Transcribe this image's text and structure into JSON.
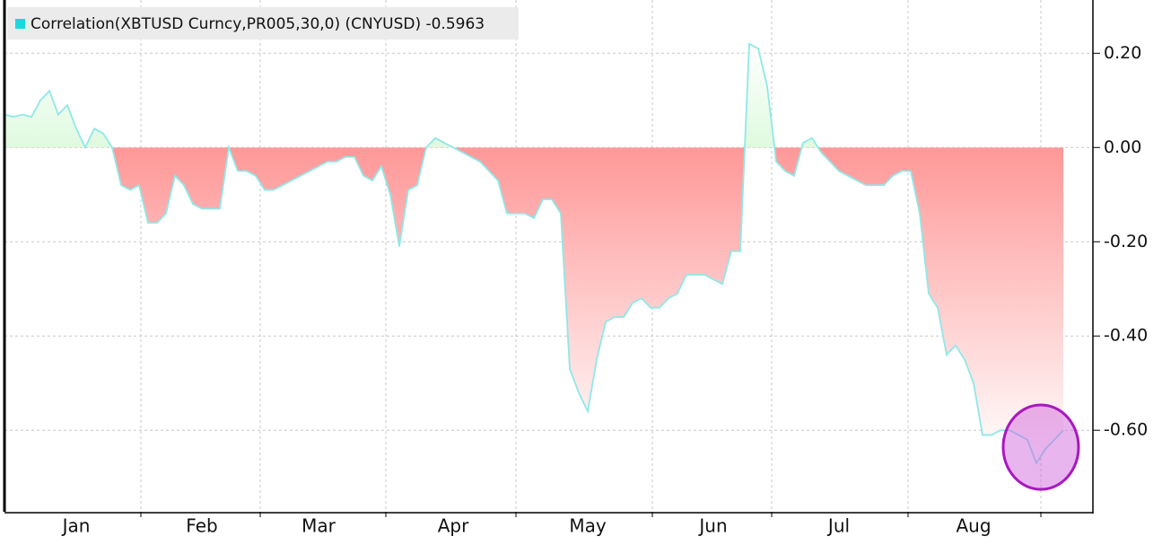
{
  "chart_data": {
    "type": "area",
    "categories": [
      null,
      null,
      null,
      null,
      null,
      null,
      null,
      null,
      "Jan",
      null,
      null,
      null,
      null,
      null,
      null,
      null,
      null,
      null,
      null,
      null,
      null,
      null,
      "Feb",
      null,
      null,
      null,
      null,
      null,
      null,
      null,
      null,
      null,
      null,
      null,
      null,
      "Mar",
      null,
      null,
      null,
      null,
      null,
      null,
      null,
      null,
      null,
      null,
      null,
      null,
      null,
      null,
      "Apr",
      null,
      null,
      null,
      null,
      null,
      null,
      null,
      null,
      null,
      null,
      null,
      null,
      null,
      null,
      "May",
      null,
      null,
      null,
      null,
      null,
      null,
      null,
      null,
      null,
      null,
      null,
      null,
      null,
      "Jun",
      null,
      null,
      null,
      null,
      null,
      null,
      null,
      null,
      null,
      null,
      null,
      null,
      null,
      "Jul",
      null,
      null,
      null,
      null,
      null,
      null,
      null,
      null,
      null,
      null,
      null,
      null,
      null,
      null,
      "Aug",
      null,
      null,
      null,
      null,
      null,
      null,
      null,
      null,
      null,
      null
    ],
    "series": [
      {
        "name": "Correlation(XBTUSD Curncy,PR005,30,0) (CNYUSD) -0.5963",
        "color": "#19d9e0",
        "values": [
          0.07,
          0.065,
          0.07,
          0.065,
          0.1,
          0.12,
          0.07,
          0.09,
          0.04,
          0.0,
          0.04,
          0.03,
          0.0,
          -0.08,
          -0.09,
          -0.08,
          -0.16,
          -0.16,
          -0.14,
          -0.06,
          -0.08,
          -0.12,
          -0.13,
          -0.13,
          -0.13,
          0.0,
          -0.05,
          -0.05,
          -0.06,
          -0.09,
          -0.09,
          -0.08,
          -0.07,
          -0.06,
          -0.05,
          -0.04,
          -0.03,
          -0.03,
          -0.02,
          -0.02,
          -0.06,
          -0.07,
          -0.04,
          -0.1,
          -0.21,
          -0.09,
          -0.08,
          0.0,
          0.02,
          0.01,
          0.0,
          -0.01,
          -0.02,
          -0.03,
          -0.05,
          -0.07,
          -0.14,
          -0.14,
          -0.14,
          -0.15,
          -0.11,
          -0.11,
          -0.14,
          -0.47,
          -0.52,
          -0.56,
          -0.45,
          -0.37,
          -0.36,
          -0.36,
          -0.33,
          -0.32,
          -0.34,
          -0.34,
          -0.32,
          -0.31,
          -0.27,
          -0.27,
          -0.27,
          -0.28,
          -0.29,
          -0.22,
          -0.22,
          0.22,
          0.21,
          0.13,
          -0.03,
          -0.05,
          -0.06,
          0.01,
          0.02,
          -0.01,
          -0.03,
          -0.05,
          -0.06,
          -0.07,
          -0.08,
          -0.08,
          -0.08,
          -0.06,
          -0.05,
          -0.05,
          -0.14,
          -0.31,
          -0.34,
          -0.44,
          -0.42,
          -0.45,
          -0.5,
          -0.61,
          -0.61,
          -0.6,
          -0.6,
          -0.61,
          -0.62,
          -0.67,
          -0.64,
          -0.62,
          -0.6
        ]
      }
    ],
    "line_color": "#8fe8e8",
    "positive_color": "#7eea7e",
    "negative_color": "#ff7676",
    "ylim": [
      -0.773,
      0.313
    ],
    "yticks": [
      {
        "value": 0.2,
        "label": "0.20"
      },
      {
        "value": 0,
        "label": "0.00"
      },
      {
        "value": -0.2,
        "label": "-0.20"
      },
      {
        "value": -0.4,
        "label": "-0.40"
      },
      {
        "value": -0.6,
        "label": "-0.60"
      }
    ],
    "grid": true,
    "legend": "top-left"
  }
}
